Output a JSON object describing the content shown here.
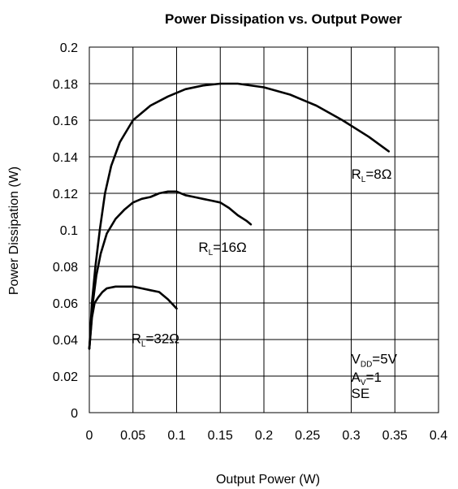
{
  "chart_data": {
    "type": "line",
    "title": "Power Dissipation vs. Output Power",
    "xlabel": "Output Power (W)",
    "ylabel": "Power Dissipation (W)",
    "xlim": [
      0,
      0.4
    ],
    "ylim": [
      0,
      0.2
    ],
    "grid": true,
    "x_ticks": [
      "0",
      "0.05",
      "0.1",
      "0.15",
      "0.2",
      "0.25",
      "0.3",
      "0.35",
      "0.4"
    ],
    "y_ticks": [
      "0",
      "0.02",
      "0.04",
      "0.06",
      "0.08",
      "0.1",
      "0.12",
      "0.14",
      "0.16",
      "0.18",
      "0.2"
    ],
    "series": [
      {
        "name": "RL=8Ω",
        "x": [
          0.0,
          0.003,
          0.007,
          0.012,
          0.018,
          0.025,
          0.035,
          0.05,
          0.07,
          0.09,
          0.11,
          0.13,
          0.15,
          0.17,
          0.2,
          0.23,
          0.26,
          0.29,
          0.32,
          0.343
        ],
        "y": [
          0.035,
          0.06,
          0.08,
          0.1,
          0.12,
          0.135,
          0.148,
          0.16,
          0.168,
          0.173,
          0.177,
          0.179,
          0.18,
          0.18,
          0.178,
          0.174,
          0.168,
          0.16,
          0.151,
          0.143
        ]
      },
      {
        "name": "RL=16Ω",
        "x": [
          0.0,
          0.004,
          0.008,
          0.013,
          0.02,
          0.03,
          0.04,
          0.05,
          0.06,
          0.07,
          0.08,
          0.09,
          0.1,
          0.11,
          0.12,
          0.13,
          0.14,
          0.15,
          0.16,
          0.17,
          0.18,
          0.185
        ],
        "y": [
          0.035,
          0.06,
          0.075,
          0.087,
          0.098,
          0.106,
          0.111,
          0.115,
          0.117,
          0.118,
          0.12,
          0.121,
          0.121,
          0.119,
          0.118,
          0.117,
          0.116,
          0.115,
          0.112,
          0.108,
          0.105,
          0.103
        ]
      },
      {
        "name": "RL=32Ω",
        "x": [
          0.0,
          0.003,
          0.006,
          0.01,
          0.015,
          0.02,
          0.03,
          0.04,
          0.05,
          0.06,
          0.07,
          0.08,
          0.09,
          0.1
        ],
        "y": [
          0.035,
          0.052,
          0.06,
          0.063,
          0.066,
          0.068,
          0.069,
          0.069,
          0.069,
          0.068,
          0.067,
          0.066,
          0.062,
          0.057
        ]
      }
    ],
    "annotations": {
      "rl8": {
        "main": "R",
        "sub": "L",
        "value": "=8Ω",
        "x": 0.3,
        "y": 0.128
      },
      "rl16": {
        "main": "R",
        "sub": "L",
        "value": "=16Ω",
        "x": 0.125,
        "y": 0.088
      },
      "rl32": {
        "main": "R",
        "sub": "L",
        "value": "=32Ω",
        "x": 0.048,
        "y": 0.038
      },
      "vdd": {
        "main": "V",
        "sub": "DD",
        "value": "=5V",
        "x": 0.3,
        "y": 0.027
      },
      "av": {
        "main": "A",
        "sub": "V",
        "value": "=1",
        "x": 0.3,
        "y": 0.017
      },
      "se": {
        "text": "SE",
        "x": 0.3,
        "y": 0.008
      }
    }
  }
}
